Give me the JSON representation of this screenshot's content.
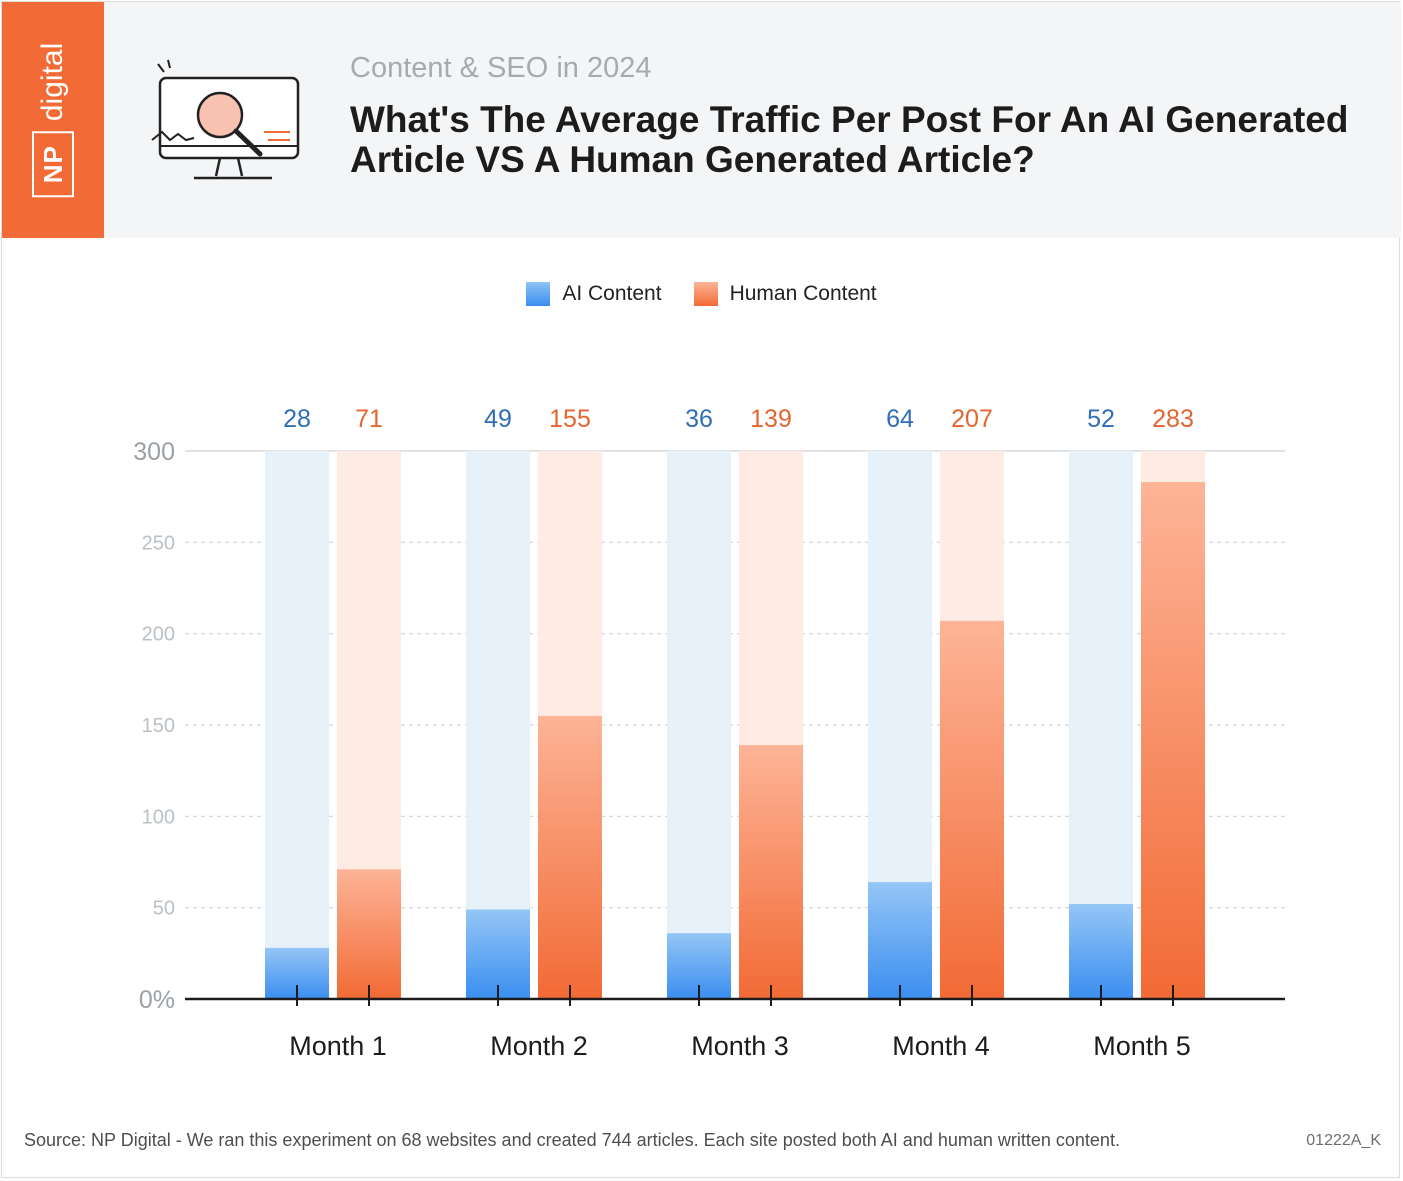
{
  "brand": {
    "np": "NP",
    "digital": "digital"
  },
  "header": {
    "subtitle": "Content & SEO in 2024",
    "title": "What's The Average Traffic Per Post For An AI Generated Article VS A Human Generated Article?"
  },
  "legend": {
    "ai": "AI Content",
    "human": "Human Content"
  },
  "colors": {
    "brand_orange": "#f26a35",
    "ai_blue": "#3b8ef0",
    "ai_label": "#2f6db6",
    "human_orange": "#f26a35",
    "human_label": "#e3652f"
  },
  "chart_data": {
    "type": "bar",
    "categories": [
      "Month 1",
      "Month 2",
      "Month 3",
      "Month 4",
      "Month 5"
    ],
    "series": [
      {
        "name": "AI Content",
        "values": [
          28,
          49,
          36,
          64,
          52
        ]
      },
      {
        "name": "Human Content",
        "values": [
          71,
          155,
          139,
          207,
          283
        ]
      }
    ],
    "y_ticks": [
      "0%",
      "50",
      "100",
      "150",
      "200",
      "250",
      "300"
    ],
    "ylim": [
      0,
      300
    ],
    "grid": true,
    "legend_position": "top-center"
  },
  "footer": {
    "source": "Source: NP Digital - We ran this experiment on 68 websites and created 744 articles. Each site posted both AI and human written content.",
    "code": "01222A_K"
  }
}
